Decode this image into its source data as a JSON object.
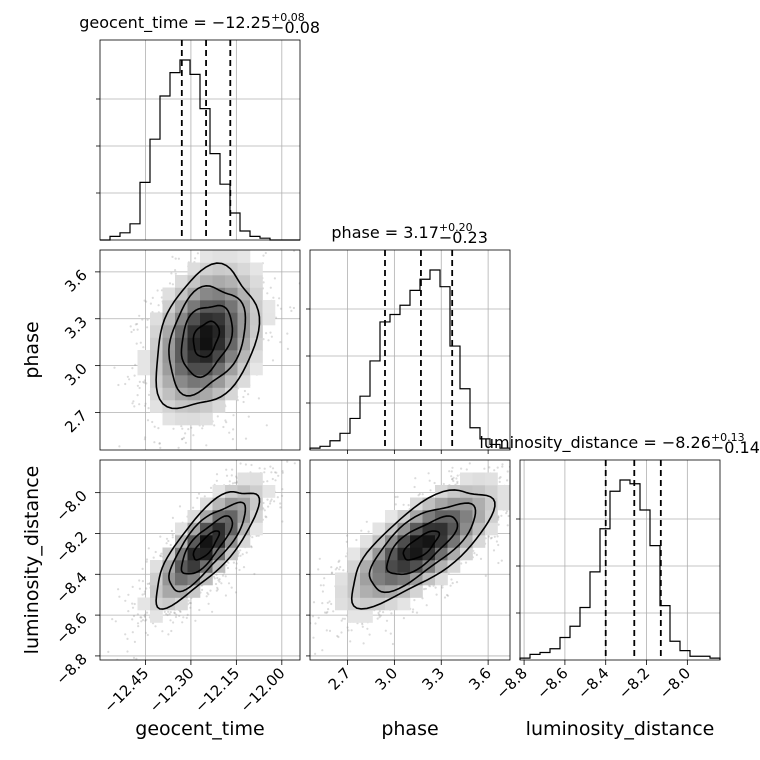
{
  "chart_data": {
    "type": "corner",
    "parameters": [
      "geocent_time",
      "phase",
      "luminosity_distance"
    ],
    "titles": [
      {
        "param": "geocent_time",
        "text": "geocent_time = −12.25",
        "plus": "+0.08",
        "minus": "−0.08"
      },
      {
        "param": "phase",
        "text": "phase = 3.17",
        "plus": "+0.20",
        "minus": "−0.23"
      },
      {
        "param": "luminosity_distance",
        "text": "luminosity_distance = −8.26",
        "plus": "+0.13",
        "minus": "−0.14"
      }
    ],
    "axis_labels": {
      "geocent_time": "geocent_time",
      "phase": "phase",
      "luminosity_distance": "luminosity_distance"
    },
    "ranges": {
      "geocent_time": [
        -12.6,
        -11.94
      ],
      "phase": [
        2.46,
        3.74
      ],
      "luminosity_distance": [
        -8.82,
        -7.84
      ]
    },
    "ticks": {
      "geocent_time": {
        "values": [
          -12.45,
          -12.3,
          -12.15,
          -12.0
        ],
        "labels": [
          "−12.45",
          "−12.30",
          "−12.15",
          "−12.00"
        ]
      },
      "phase": {
        "values": [
          2.7,
          3.0,
          3.3,
          3.6
        ],
        "labels": [
          "2.7",
          "3.0",
          "3.3",
          "3.6"
        ]
      },
      "luminosity_distance": {
        "values": [
          -8.8,
          -8.6,
          -8.4,
          -8.2,
          -8.0
        ],
        "labels": [
          "−8.8",
          "−8.6",
          "−8.4",
          "−8.2",
          "−8.0"
        ]
      }
    },
    "histograms": {
      "geocent_time": {
        "bin_edges": [
          -12.6,
          -12.567,
          -12.534,
          -12.501,
          -12.468,
          -12.435,
          -12.402,
          -12.369,
          -12.336,
          -12.303,
          -12.27,
          -12.237,
          -12.204,
          -12.171,
          -12.138,
          -12.105,
          -12.072,
          -12.039,
          -12.006,
          -11.973,
          -11.94
        ],
        "heights": [
          0.0,
          0.02,
          0.04,
          0.09,
          0.32,
          0.56,
          0.8,
          0.93,
          1.0,
          0.92,
          0.73,
          0.48,
          0.31,
          0.15,
          0.05,
          0.02,
          0.01,
          0.0,
          0.0,
          0.0
        ],
        "quantiles": [
          -12.33,
          -12.25,
          -12.17
        ]
      },
      "phase": {
        "bin_edges": [
          2.46,
          2.524,
          2.588,
          2.652,
          2.716,
          2.78,
          2.844,
          2.908,
          2.972,
          3.036,
          3.1,
          3.164,
          3.228,
          3.292,
          3.356,
          3.42,
          3.484,
          3.548,
          3.612,
          3.676,
          3.74
        ],
        "heights": [
          0.01,
          0.02,
          0.05,
          0.09,
          0.17,
          0.29,
          0.48,
          0.69,
          0.73,
          0.78,
          0.86,
          0.92,
          0.97,
          0.88,
          0.56,
          0.33,
          0.12,
          0.06,
          0.03,
          0.01
        ],
        "quantiles": [
          2.94,
          3.17,
          3.37
        ]
      },
      "luminosity_distance": {
        "bin_edges": [
          -8.82,
          -8.771,
          -8.722,
          -8.673,
          -8.624,
          -8.575,
          -8.526,
          -8.477,
          -8.428,
          -8.379,
          -8.33,
          -8.281,
          -8.232,
          -8.183,
          -8.134,
          -8.085,
          -8.036,
          -7.987,
          -7.938,
          -7.889,
          -7.84
        ],
        "heights": [
          0.01,
          0.03,
          0.04,
          0.06,
          0.12,
          0.18,
          0.28,
          0.47,
          0.7,
          0.9,
          0.96,
          0.94,
          0.8,
          0.61,
          0.29,
          0.1,
          0.05,
          0.02,
          0.02,
          0.01
        ],
        "quantiles": [
          -8.4,
          -8.26,
          -8.13
        ]
      }
    },
    "joint": [
      {
        "x": "geocent_time",
        "y": "phase",
        "rho": 0.3
      },
      {
        "x": "geocent_time",
        "y": "luminosity_distance",
        "rho": 0.78
      },
      {
        "x": "phase",
        "y": "luminosity_distance",
        "rho": 0.72
      }
    ]
  }
}
